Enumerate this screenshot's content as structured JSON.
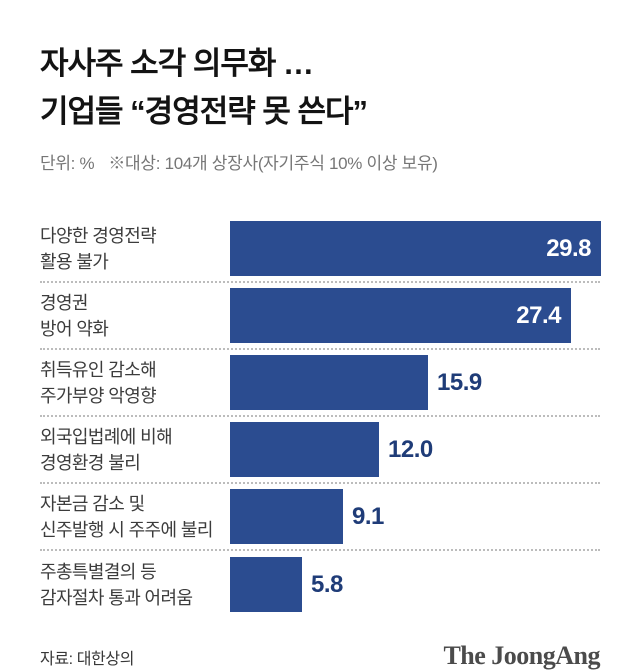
{
  "header": {
    "title_line1": "자사주 소각 의무화 …",
    "title_line2": "기업들 “경영전략 못 쓴다”",
    "unit_label": "단위: %",
    "note_label": "※대상: 104개 상장사(자기주식 10% 이상 보유)"
  },
  "chart_data": {
    "type": "bar",
    "orientation": "horizontal",
    "unit": "%",
    "title": "자사주 소각 의무화 … 기업들 “경영전략 못 쓴다”",
    "sample_note": "104개 상장사(자기주식 10% 이상 보유)",
    "categories": [
      "다양한 경영전략 활용 불가",
      "경영권 방어 약화",
      "취득유인 감소해 주가부양 악영향",
      "외국입법례에 비해 경영환경 불리",
      "자본금 감소 및 신주발행 시 주주에 불리",
      "주총특별결의 등 감자절차 통과 어려움"
    ],
    "values": [
      29.8,
      27.4,
      15.9,
      12.0,
      9.1,
      5.8
    ],
    "xlim": [
      0,
      31
    ],
    "grid": false,
    "legend": "none",
    "bar_color": "#2b4c90",
    "value_color_inside": "#ffffff",
    "value_color_outside": "#1f3c78"
  },
  "rows": [
    {
      "label_lines": [
        "다양한 경영전략",
        "활용 불가"
      ],
      "value": 29.8,
      "display": "29.8"
    },
    {
      "label_lines": [
        "경영권",
        "방어 약화"
      ],
      "value": 27.4,
      "display": "27.4"
    },
    {
      "label_lines": [
        "취득유인 감소해",
        "주가부양 악영향"
      ],
      "value": 15.9,
      "display": "15.9"
    },
    {
      "label_lines": [
        "외국입법례에 비해",
        "경영환경 불리"
      ],
      "value": 12.0,
      "display": "12.0"
    },
    {
      "label_lines": [
        "자본금 감소 및",
        "신주발행 시 주주에 불리"
      ],
      "value": 9.1,
      "display": "9.1"
    },
    {
      "label_lines": [
        "주총특별결의 등",
        "감자절차 통과 어려움"
      ],
      "value": 5.8,
      "display": "5.8"
    }
  ],
  "footer": {
    "source": "자료: 대한상의",
    "logo": "The JoongAng"
  }
}
